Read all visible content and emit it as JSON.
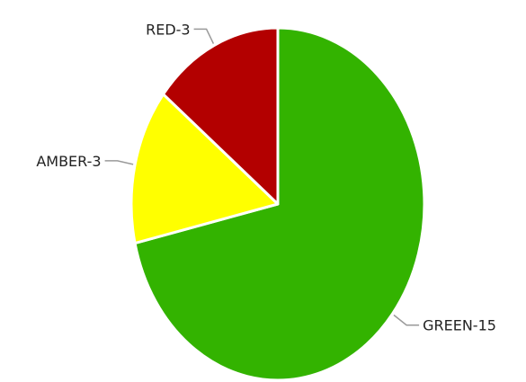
{
  "chart_data": {
    "type": "pie",
    "title": "",
    "slices": [
      {
        "category": "GREEN",
        "value": 15,
        "label": "GREEN-15",
        "color": "#33b300"
      },
      {
        "category": "AMBER",
        "value": 3,
        "label": "AMBER-3",
        "color": "#ffff00"
      },
      {
        "category": "RED",
        "value": 3,
        "label": "RED-3",
        "color": "#b30000"
      }
    ],
    "start_position": "top, clockwise",
    "legend": "none",
    "data_labels": "outside with leader lines"
  }
}
